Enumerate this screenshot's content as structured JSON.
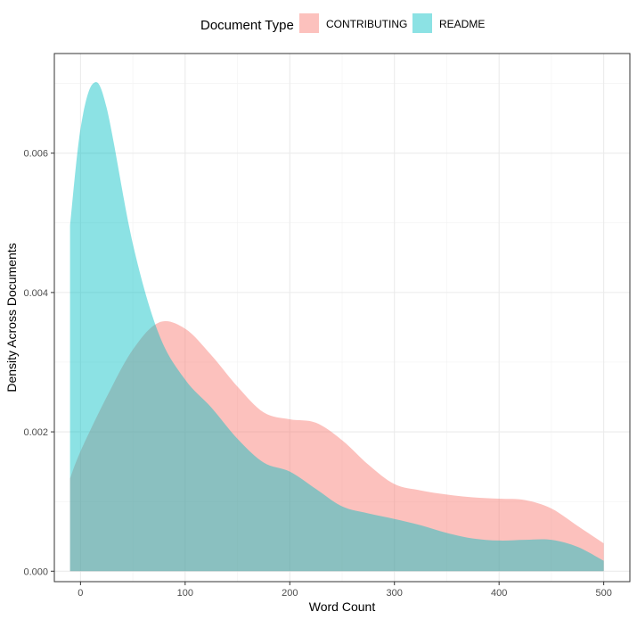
{
  "chart_data": {
    "type": "area",
    "xlabel": "Word Count",
    "ylabel": "Density Across Documents",
    "xlim": [
      -25,
      525
    ],
    "ylim": [
      -0.00015,
      0.00743
    ],
    "x_ticks": [
      0,
      100,
      200,
      300,
      400,
      500
    ],
    "y_ticks": [
      0.0,
      0.002,
      0.004,
      0.006
    ],
    "x_tick_labels": [
      "0",
      "100",
      "200",
      "300",
      "400",
      "500"
    ],
    "y_tick_labels": [
      "0.000",
      "0.002",
      "0.004",
      "0.006"
    ],
    "grid": true,
    "legend": {
      "title": "Document Type",
      "position": "top"
    },
    "series": [
      {
        "name": "CONTRIBUTING",
        "color": "#F8766D",
        "x": [
          -10,
          0,
          25,
          50,
          75,
          100,
          125,
          150,
          175,
          200,
          225,
          250,
          275,
          300,
          325,
          350,
          375,
          400,
          425,
          450,
          475,
          500
        ],
        "y": [
          0.00133,
          0.00172,
          0.0025,
          0.00318,
          0.00357,
          0.00348,
          0.0031,
          0.00265,
          0.00228,
          0.00218,
          0.00213,
          0.00188,
          0.00153,
          0.00125,
          0.00116,
          0.0011,
          0.00106,
          0.00104,
          0.00102,
          0.0009,
          0.00065,
          0.0004
        ]
      },
      {
        "name": "README",
        "color": "#00BFC4",
        "x": [
          -10,
          0,
          12,
          25,
          50,
          75,
          100,
          125,
          150,
          175,
          200,
          225,
          250,
          275,
          300,
          325,
          350,
          375,
          400,
          425,
          450,
          475,
          500
        ],
        "y": [
          0.00495,
          0.00635,
          0.007,
          0.00665,
          0.0047,
          0.0034,
          0.00275,
          0.00235,
          0.0019,
          0.00156,
          0.00143,
          0.00118,
          0.00093,
          0.00083,
          0.00075,
          0.00066,
          0.00055,
          0.00047,
          0.00044,
          0.00045,
          0.00045,
          0.00035,
          0.00015
        ]
      }
    ]
  }
}
